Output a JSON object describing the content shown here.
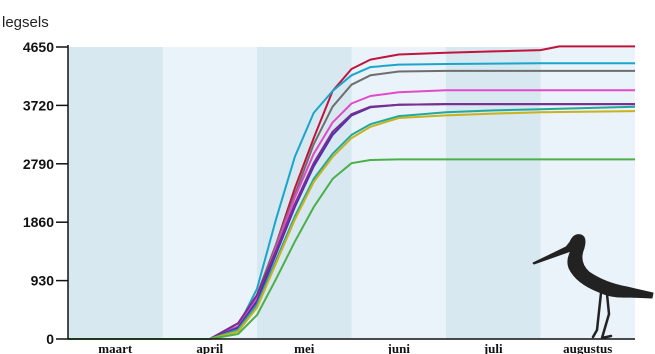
{
  "chart_data": {
    "type": "line",
    "title": "",
    "ylabel": "legsels",
    "xlabel": "",
    "ylim": [
      0,
      4650
    ],
    "yticks": [
      0,
      930,
      1860,
      2790,
      3720,
      4650
    ],
    "ytick_labels": [
      "0",
      "930",
      "1860",
      "2790",
      "3720",
      "4650"
    ],
    "months": [
      "maart",
      "april",
      "mei",
      "juni",
      "juli",
      "augustus"
    ],
    "xlim": [
      0,
      6
    ],
    "grid": false,
    "legend": "none",
    "band_colors": [
      "#d7e8f0",
      "#e9f3f9"
    ],
    "series": [
      {
        "color": "#c0143c",
        "x": [
          0,
          1.5,
          1.8,
          2.0,
          2.2,
          2.4,
          2.6,
          2.8,
          3.0,
          3.2,
          3.5,
          4.0,
          4.5,
          5.0,
          5.2,
          6.0
        ],
        "values": [
          0,
          0,
          250,
          700,
          1500,
          2400,
          3200,
          3950,
          4300,
          4450,
          4530,
          4560,
          4580,
          4600,
          4660,
          4660
        ]
      },
      {
        "color": "#1aa6cc",
        "x": [
          0,
          1.5,
          1.8,
          2.0,
          2.2,
          2.4,
          2.6,
          2.8,
          3.0,
          3.2,
          3.5,
          4.0,
          4.5,
          5.0,
          6.0
        ],
        "values": [
          0,
          0,
          200,
          800,
          1900,
          2900,
          3600,
          3950,
          4200,
          4330,
          4370,
          4380,
          4385,
          4390,
          4390
        ]
      },
      {
        "color": "#6e6e6e",
        "x": [
          0,
          1.5,
          1.8,
          2.0,
          2.2,
          2.4,
          2.6,
          2.8,
          3.0,
          3.2,
          3.5,
          4.0,
          4.5,
          5.0,
          6.0
        ],
        "values": [
          0,
          0,
          200,
          700,
          1500,
          2300,
          3100,
          3700,
          4050,
          4200,
          4260,
          4270,
          4270,
          4270,
          4270
        ]
      },
      {
        "color": "#e14ac8",
        "x": [
          0,
          1.5,
          1.8,
          2.0,
          2.2,
          2.4,
          2.6,
          2.8,
          3.0,
          3.2,
          3.5,
          4.0,
          4.5,
          5.0,
          6.0
        ],
        "values": [
          0,
          0,
          200,
          650,
          1450,
          2250,
          2950,
          3450,
          3750,
          3870,
          3930,
          3960,
          3960,
          3960,
          3960
        ]
      },
      {
        "color": "#4b2fb5",
        "x": [
          0,
          1.5,
          1.8,
          2.0,
          2.2,
          2.4,
          2.6,
          2.8,
          3.0,
          3.2,
          3.5,
          4.0,
          4.5,
          5.0,
          6.0
        ],
        "values": [
          0,
          0,
          180,
          600,
          1350,
          2100,
          2750,
          3250,
          3560,
          3690,
          3730,
          3740,
          3740,
          3740,
          3740
        ]
      },
      {
        "color": "#7a2f8c",
        "x": [
          0,
          1.5,
          1.8,
          2.0,
          2.2,
          2.4,
          2.6,
          2.8,
          3.0,
          3.2,
          3.5,
          4.0,
          4.5,
          5.0,
          6.0
        ],
        "values": [
          0,
          0,
          250,
          700,
          1400,
          2150,
          2800,
          3300,
          3580,
          3700,
          3730,
          3740,
          3740,
          3740,
          3740
        ]
      },
      {
        "color": "#23a89c",
        "x": [
          0,
          1.5,
          1.8,
          2.0,
          2.2,
          2.4,
          2.6,
          2.8,
          3.0,
          3.2,
          3.5,
          4.0,
          4.5,
          5.0,
          6.0
        ],
        "values": [
          0,
          0,
          150,
          550,
          1250,
          1950,
          2550,
          2950,
          3250,
          3420,
          3550,
          3610,
          3640,
          3660,
          3700
        ]
      },
      {
        "color": "#c9b21d",
        "x": [
          0,
          1.5,
          1.8,
          2.0,
          2.2,
          2.4,
          2.6,
          2.8,
          3.0,
          3.2,
          3.5,
          4.0,
          4.5,
          5.0,
          6.0
        ],
        "values": [
          0,
          0,
          120,
          500,
          1200,
          1900,
          2500,
          2900,
          3200,
          3380,
          3520,
          3560,
          3590,
          3610,
          3630
        ]
      },
      {
        "color": "#4caf48",
        "x": [
          0,
          1.5,
          1.8,
          2.0,
          2.2,
          2.4,
          2.6,
          2.8,
          3.0,
          3.2,
          3.5,
          4.0,
          4.5,
          5.0,
          6.0
        ],
        "values": [
          0,
          0,
          80,
          380,
          950,
          1550,
          2100,
          2550,
          2800,
          2850,
          2860,
          2860,
          2860,
          2860,
          2860
        ]
      }
    ]
  }
}
